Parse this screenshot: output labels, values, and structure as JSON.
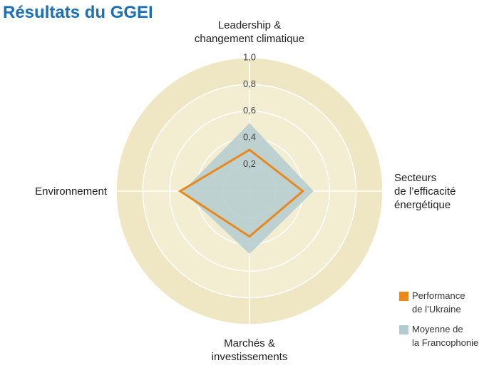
{
  "chart_data": {
    "type": "radar",
    "title": "Résultats du GGEI",
    "categories": [
      "Leadership &\nchangement climatique",
      "Secteurs\nde l’efficacité\nénergétique",
      "Marchés &\ninvestissements",
      "Environnement"
    ],
    "series": [
      {
        "name": "Performance\nde l’Ukraine",
        "color": "#e8891e",
        "values": [
          0.31,
          0.4,
          0.34,
          0.52
        ]
      },
      {
        "name": "Moyenne de\nla Francophonie",
        "color": "#b3cbd0",
        "values": [
          0.51,
          0.48,
          0.47,
          0.5
        ]
      }
    ],
    "rlim": [
      0,
      1
    ],
    "rticks": [
      {
        "value": 0.2,
        "label": "0,2"
      },
      {
        "value": 0.4,
        "label": "0,4"
      },
      {
        "value": 0.6,
        "label": "0,6"
      },
      {
        "value": 0.8,
        "label": "0,8"
      },
      {
        "value": 1.0,
        "label": "1,0"
      }
    ]
  }
}
